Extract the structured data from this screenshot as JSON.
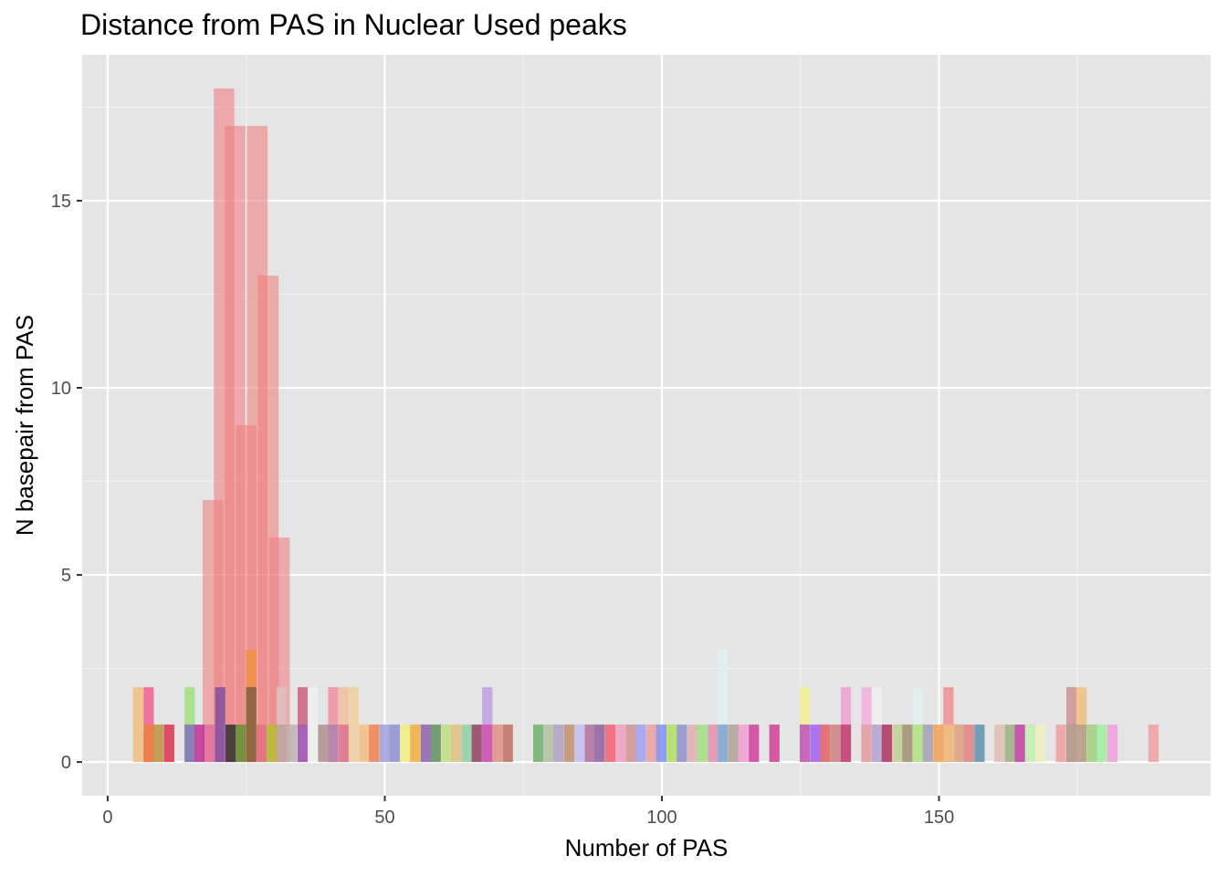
{
  "chart_data": {
    "type": "bar",
    "title": "Distance from PAS in Nuclear Used peaks",
    "xlabel": "Number of PAS",
    "ylabel": "N basepair from PAS",
    "xlim": [
      -4.6,
      199
    ],
    "ylim": [
      -0.9,
      18.9
    ],
    "x_ticks": [
      0,
      50,
      100,
      150
    ],
    "y_ticks": [
      0,
      5,
      10,
      15
    ],
    "grid": true,
    "legend": "none",
    "panel_color": "#e5e5e5",
    "bin_width": 1.85,
    "series": [
      {
        "color": "#f08080",
        "opacity": 0.6,
        "x": [
          19,
          21,
          23,
          25,
          27,
          29,
          31
        ],
        "values": [
          7,
          18,
          17,
          9,
          17,
          13,
          6
        ],
        "note_values_as_read": true
      }
    ],
    "small_bars": [
      {
        "x": 5.5,
        "value": 2,
        "color": "#f0c080"
      },
      {
        "x": 7.4,
        "value": 2,
        "color": "#f06090"
      },
      {
        "x": 7.4,
        "value": 1,
        "color": "#f08040"
      },
      {
        "x": 9.2,
        "value": 1,
        "color": "#c09040"
      },
      {
        "x": 11.1,
        "value": 1,
        "color": "#e03050"
      },
      {
        "x": 14.8,
        "value": 2,
        "color": "#a0e080"
      },
      {
        "x": 14.8,
        "value": 1,
        "color": "#8070c0"
      },
      {
        "x": 16.6,
        "value": 1,
        "color": "#c03090"
      },
      {
        "x": 18.5,
        "value": 1,
        "color": "#e070a0"
      },
      {
        "x": 20.3,
        "value": 2,
        "color": "#8050a0"
      },
      {
        "x": 22.2,
        "value": 1,
        "color": "#303030"
      },
      {
        "x": 24.0,
        "value": 1,
        "color": "#609030"
      },
      {
        "x": 25.9,
        "value": 3,
        "color": "#f09040"
      },
      {
        "x": 25.9,
        "value": 2,
        "color": "#806040"
      },
      {
        "x": 27.7,
        "value": 1,
        "color": "#e07080"
      },
      {
        "x": 29.6,
        "value": 1,
        "color": "#b0c030"
      },
      {
        "x": 31.4,
        "value": 2,
        "color": "#e0c0c0"
      },
      {
        "x": 31.4,
        "value": 1,
        "color": "#c0a0a0"
      },
      {
        "x": 33.3,
        "value": 1,
        "color": "#c0b0b0"
      },
      {
        "x": 35.2,
        "value": 2,
        "color": "#d06080"
      },
      {
        "x": 35.2,
        "value": 1,
        "color": "#a060c0"
      },
      {
        "x": 37.0,
        "value": 2,
        "color": "#f0f0f0"
      },
      {
        "x": 38.9,
        "value": 1,
        "color": "#b09090"
      },
      {
        "x": 40.7,
        "value": 2,
        "color": "#f090a0"
      },
      {
        "x": 40.7,
        "value": 1,
        "color": "#b080b0"
      },
      {
        "x": 42.6,
        "value": 2,
        "color": "#f0c0a0"
      },
      {
        "x": 42.6,
        "value": 1,
        "color": "#e07090"
      },
      {
        "x": 44.4,
        "value": 2,
        "color": "#f0d0a0"
      },
      {
        "x": 46.3,
        "value": 1,
        "color": "#f0c080"
      },
      {
        "x": 48.1,
        "value": 1,
        "color": "#f08050"
      },
      {
        "x": 50.0,
        "value": 1,
        "color": "#a0a0e0"
      },
      {
        "x": 51.8,
        "value": 1,
        "color": "#9090d0"
      },
      {
        "x": 53.7,
        "value": 1,
        "color": "#f0f080"
      },
      {
        "x": 55.5,
        "value": 1,
        "color": "#f0b040"
      },
      {
        "x": 57.4,
        "value": 1,
        "color": "#9060b0"
      },
      {
        "x": 59.2,
        "value": 1,
        "color": "#609060"
      },
      {
        "x": 61.1,
        "value": 1,
        "color": "#c0e080"
      },
      {
        "x": 62.9,
        "value": 1,
        "color": "#e0c080"
      },
      {
        "x": 64.8,
        "value": 1,
        "color": "#90d0a0"
      },
      {
        "x": 66.6,
        "value": 1,
        "color": "#904060"
      },
      {
        "x": 68.5,
        "value": 2,
        "color": "#c0a0e0"
      },
      {
        "x": 68.5,
        "value": 1,
        "color": "#d050b0"
      },
      {
        "x": 70.3,
        "value": 1,
        "color": "#e09080"
      },
      {
        "x": 72.2,
        "value": 1,
        "color": "#c07060"
      },
      {
        "x": 77.7,
        "value": 1,
        "color": "#70b070"
      },
      {
        "x": 79.6,
        "value": 1,
        "color": "#b0c0a0"
      },
      {
        "x": 81.4,
        "value": 1,
        "color": "#b0a0c0"
      },
      {
        "x": 83.3,
        "value": 1,
        "color": "#c09070"
      },
      {
        "x": 85.1,
        "value": 1,
        "color": "#c0c0f0"
      },
      {
        "x": 87.0,
        "value": 1,
        "color": "#b070a0"
      },
      {
        "x": 88.8,
        "value": 1,
        "color": "#9060a0"
      },
      {
        "x": 90.7,
        "value": 1,
        "color": "#f06070"
      },
      {
        "x": 92.5,
        "value": 1,
        "color": "#f0a0c0"
      },
      {
        "x": 94.4,
        "value": 1,
        "color": "#d09090"
      },
      {
        "x": 96.2,
        "value": 1,
        "color": "#a0a0f0"
      },
      {
        "x": 98.1,
        "value": 1,
        "color": "#f0a0a0"
      },
      {
        "x": 99.9,
        "value": 1,
        "color": "#8090f0"
      },
      {
        "x": 101.8,
        "value": 1,
        "color": "#b0e060"
      },
      {
        "x": 103.6,
        "value": 1,
        "color": "#9090d0"
      },
      {
        "x": 105.5,
        "value": 1,
        "color": "#e0b0b0"
      },
      {
        "x": 107.3,
        "value": 1,
        "color": "#a0e080"
      },
      {
        "x": 109.2,
        "value": 1,
        "color": "#e090b0"
      },
      {
        "x": 111.0,
        "value": 3,
        "color": "#e0f0f0"
      },
      {
        "x": 111.0,
        "value": 1,
        "color": "#80a0d0"
      },
      {
        "x": 112.9,
        "value": 1,
        "color": "#b0a090"
      },
      {
        "x": 114.7,
        "value": 1,
        "color": "#f0a0d0"
      },
      {
        "x": 116.6,
        "value": 1,
        "color": "#d040a0"
      },
      {
        "x": 120.3,
        "value": 1,
        "color": "#d04090"
      },
      {
        "x": 125.8,
        "value": 2,
        "color": "#f0f090"
      },
      {
        "x": 125.8,
        "value": 1,
        "color": "#c050c0"
      },
      {
        "x": 127.7,
        "value": 1,
        "color": "#a060f0"
      },
      {
        "x": 129.5,
        "value": 1,
        "color": "#e06060"
      },
      {
        "x": 131.4,
        "value": 1,
        "color": "#d08080"
      },
      {
        "x": 133.2,
        "value": 2,
        "color": "#f0a0d0"
      },
      {
        "x": 133.2,
        "value": 1,
        "color": "#c04070"
      },
      {
        "x": 136.9,
        "value": 2,
        "color": "#f0b0e0"
      },
      {
        "x": 136.9,
        "value": 1,
        "color": "#e0a0a0"
      },
      {
        "x": 138.8,
        "value": 2,
        "color": "#f0f0f0"
      },
      {
        "x": 138.8,
        "value": 1,
        "color": "#b0a0d0"
      },
      {
        "x": 140.6,
        "value": 1,
        "color": "#b03060"
      },
      {
        "x": 142.5,
        "value": 1,
        "color": "#c0d090"
      },
      {
        "x": 144.3,
        "value": 1,
        "color": "#a09070"
      },
      {
        "x": 146.2,
        "value": 2,
        "color": "#e0f0f0"
      },
      {
        "x": 146.2,
        "value": 1,
        "color": "#b0e080"
      },
      {
        "x": 148.0,
        "value": 1,
        "color": "#a0a0b0"
      },
      {
        "x": 149.9,
        "value": 1,
        "color": "#f0a050"
      },
      {
        "x": 151.7,
        "value": 2,
        "color": "#f09090"
      },
      {
        "x": 151.7,
        "value": 1,
        "color": "#f0c080"
      },
      {
        "x": 153.6,
        "value": 1,
        "color": "#e0a080"
      },
      {
        "x": 155.4,
        "value": 1,
        "color": "#e08080"
      },
      {
        "x": 157.3,
        "value": 1,
        "color": "#6090b0"
      },
      {
        "x": 160.9,
        "value": 1,
        "color": "#e0c0b0"
      },
      {
        "x": 162.8,
        "value": 1,
        "color": "#a0b080"
      },
      {
        "x": 164.6,
        "value": 1,
        "color": "#c040a0"
      },
      {
        "x": 166.5,
        "value": 1,
        "color": "#c0f0b0"
      },
      {
        "x": 168.3,
        "value": 1,
        "color": "#f0f0c0"
      },
      {
        "x": 172.0,
        "value": 1,
        "color": "#f0a0a0"
      },
      {
        "x": 173.9,
        "value": 2,
        "color": "#d09090"
      },
      {
        "x": 173.9,
        "value": 1,
        "color": "#b0a090"
      },
      {
        "x": 175.7,
        "value": 2,
        "color": "#f0c080"
      },
      {
        "x": 175.7,
        "value": 1,
        "color": "#b0a090"
      },
      {
        "x": 177.6,
        "value": 1,
        "color": "#a0d080"
      },
      {
        "x": 179.4,
        "value": 1,
        "color": "#a0f0a0"
      },
      {
        "x": 181.3,
        "value": 1,
        "color": "#f0a0e0"
      },
      {
        "x": 188.7,
        "value": 1,
        "color": "#f0a0a0"
      }
    ]
  }
}
